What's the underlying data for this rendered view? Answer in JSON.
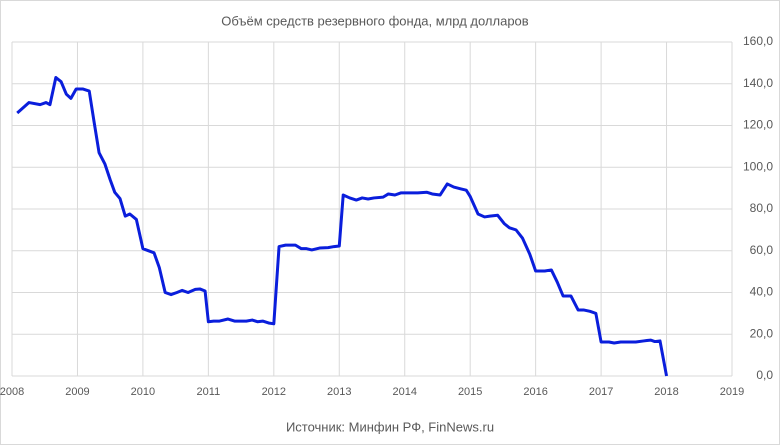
{
  "chart_data": {
    "type": "line",
    "title": "Объём средств резервного фонда, млрд долларов",
    "source": "Источник: Минфин РФ, FinNews.ru",
    "x": [
      2008.08,
      2008.26,
      2008.43,
      2008.52,
      2008.58,
      2008.67,
      2008.75,
      2008.83,
      2008.9,
      2008.98,
      2009.08,
      2009.18,
      2009.25,
      2009.33,
      2009.42,
      2009.5,
      2009.57,
      2009.65,
      2009.73,
      2009.8,
      2009.9,
      2010.0,
      2010.17,
      2010.25,
      2010.34,
      2010.43,
      2010.52,
      2010.6,
      2010.69,
      2010.8,
      2010.87,
      2010.95,
      2011.0,
      2011.08,
      2011.17,
      2011.3,
      2011.4,
      2011.58,
      2011.67,
      2011.75,
      2011.83,
      2011.92,
      2012.0,
      2012.08,
      2012.18,
      2012.33,
      2012.42,
      2012.5,
      2012.58,
      2012.7,
      2012.83,
      2012.92,
      2013.0,
      2013.06,
      2013.16,
      2013.26,
      2013.35,
      2013.44,
      2013.53,
      2013.67,
      2013.75,
      2013.85,
      2013.94,
      2014.08,
      2014.2,
      2014.34,
      2014.42,
      2014.54,
      2014.65,
      2014.75,
      2014.86,
      2014.94,
      2015.0,
      2015.12,
      2015.22,
      2015.3,
      2015.42,
      2015.52,
      2015.6,
      2015.7,
      2015.8,
      2015.91,
      2016.0,
      2016.14,
      2016.24,
      2016.33,
      2016.42,
      2016.54,
      2016.65,
      2016.74,
      2016.83,
      2016.92,
      2017.0,
      2017.12,
      2017.2,
      2017.3,
      2017.4,
      2017.53,
      2017.65,
      2017.7,
      2017.76,
      2017.82,
      2017.9,
      2018.0
    ],
    "series": [
      {
        "color": "#0a1edc",
        "values": [
          126,
          131,
          130,
          131,
          130,
          143,
          141,
          135,
          133,
          137.5,
          137.5,
          136.5,
          122.5,
          107,
          101.5,
          94,
          88,
          85,
          76.6,
          77.6,
          75,
          61,
          59,
          52,
          40,
          39,
          40,
          41,
          40,
          41.5,
          41.7,
          40.7,
          26,
          26.3,
          26.3,
          27.3,
          26.3,
          26.3,
          26.8,
          26,
          26.3,
          25.4,
          25,
          62,
          62.7,
          62.7,
          61,
          61,
          60.4,
          61.3,
          61.5,
          62,
          62.3,
          86.7,
          85.3,
          84.3,
          85.3,
          84.8,
          85.3,
          85.7,
          87.2,
          86.7,
          87.7,
          87.7,
          87.7,
          88,
          87.2,
          86.7,
          92,
          90.5,
          89.6,
          89,
          86,
          77.6,
          76.2,
          76.6,
          77,
          73,
          71,
          70,
          66,
          58.4,
          50.3,
          50.3,
          50.8,
          45,
          38.3,
          38.3,
          31.6,
          31.6,
          31,
          30,
          16.3,
          16.3,
          15.8,
          16.3,
          16.3,
          16.3,
          16.8,
          17,
          17.2,
          16.5,
          16.8,
          0
        ]
      }
    ],
    "xlim": [
      2008,
      2019
    ],
    "xticks": [
      2008,
      2009,
      2010,
      2011,
      2012,
      2013,
      2014,
      2015,
      2016,
      2017,
      2018,
      2019
    ],
    "ylim": [
      0,
      160
    ],
    "yticks": [
      {
        "value": 0,
        "label": "0,0"
      },
      {
        "value": 20,
        "label": "20,0"
      },
      {
        "value": 40,
        "label": "40,0"
      },
      {
        "value": 60,
        "label": "60,0"
      },
      {
        "value": 80,
        "label": "80,0"
      },
      {
        "value": 100,
        "label": "100,0"
      },
      {
        "value": 120,
        "label": "120,0"
      },
      {
        "value": 140,
        "label": "140,0"
      },
      {
        "value": 160,
        "label": "160,0"
      }
    ],
    "grid": true
  }
}
